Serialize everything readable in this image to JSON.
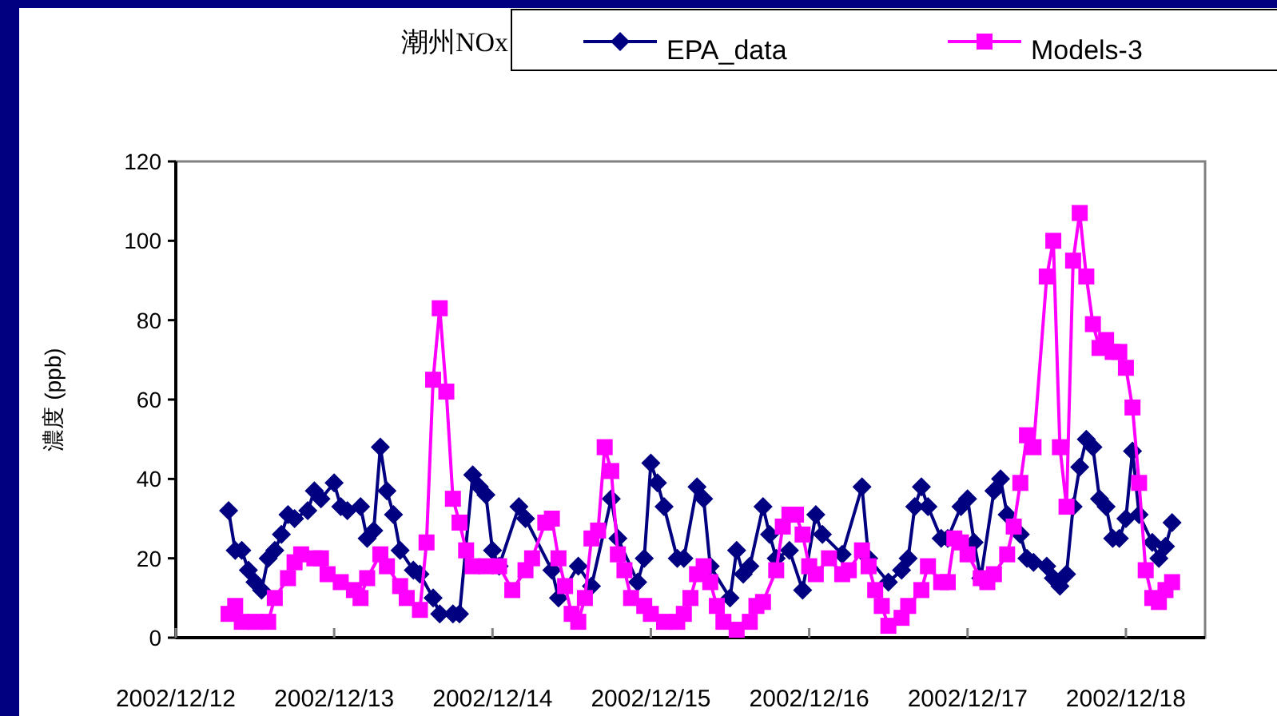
{
  "chart_data": {
    "type": "line",
    "title": "潮州NOx",
    "ylabel": "濃度 (ppb)",
    "legend": "top",
    "grid": false,
    "line_style": "solid",
    "xlim": [
      "2002-12-12T00:00",
      "2002-12-18T12:00"
    ],
    "xticks": [
      {
        "value": "2002-12-12",
        "label": "2002/12/12"
      },
      {
        "value": "2002-12-13",
        "label": "2002/12/13"
      },
      {
        "value": "2002-12-14",
        "label": "2002/12/14"
      },
      {
        "value": "2002-12-15",
        "label": "2002/12/15"
      },
      {
        "value": "2002-12-16",
        "label": "2002/12/16"
      },
      {
        "value": "2002-12-17",
        "label": "2002/12/17"
      },
      {
        "value": "2002-12-18",
        "label": "2002/12/18"
      }
    ],
    "ylim": [
      0,
      120
    ],
    "yticks": [
      0,
      20,
      40,
      60,
      80,
      100,
      120
    ],
    "series": [
      {
        "name": "EPA_data",
        "color": "#000080",
        "marker": "diamond",
        "x": [
          "2002-12-12T08:00",
          "2002-12-12T09:00",
          "2002-12-12T10:00",
          "2002-12-12T11:00",
          "2002-12-12T12:00",
          "2002-12-12T13:00",
          "2002-12-12T14:00",
          "2002-12-12T15:00",
          "2002-12-12T16:00",
          "2002-12-12T17:00",
          "2002-12-12T18:00",
          "2002-12-12T20:00",
          "2002-12-12T21:00",
          "2002-12-12T22:00",
          "2002-12-13T00:00",
          "2002-12-13T01:00",
          "2002-12-13T02:00",
          "2002-12-13T04:00",
          "2002-12-13T05:00",
          "2002-12-13T06:00",
          "2002-12-13T07:00",
          "2002-12-13T08:00",
          "2002-12-13T09:00",
          "2002-12-13T10:00",
          "2002-12-13T12:00",
          "2002-12-13T13:00",
          "2002-12-13T15:00",
          "2002-12-13T16:00",
          "2002-12-13T18:00",
          "2002-12-13T19:00",
          "2002-12-13T21:00",
          "2002-12-13T22:00",
          "2002-12-13T23:00",
          "2002-12-14T00:00",
          "2002-12-14T01:00",
          "2002-12-14T04:00",
          "2002-12-14T05:00",
          "2002-12-14T09:00",
          "2002-12-14T10:00",
          "2002-12-14T13:00",
          "2002-12-14T15:00",
          "2002-12-14T18:00",
          "2002-12-14T19:00",
          "2002-12-14T22:00",
          "2002-12-14T23:00",
          "2002-12-15T00:00",
          "2002-12-15T01:00",
          "2002-12-15T02:00",
          "2002-12-15T04:00",
          "2002-12-15T05:00",
          "2002-12-15T07:00",
          "2002-12-15T08:00",
          "2002-12-15T09:00",
          "2002-12-15T12:00",
          "2002-12-15T13:00",
          "2002-12-15T14:00",
          "2002-12-15T15:00",
          "2002-12-15T17:00",
          "2002-12-15T18:00",
          "2002-12-15T19:00",
          "2002-12-15T21:00",
          "2002-12-15T23:00",
          "2002-12-16T01:00",
          "2002-12-16T02:00",
          "2002-12-16T05:00",
          "2002-12-16T08:00",
          "2002-12-16T09:00",
          "2002-12-16T12:00",
          "2002-12-16T14:00",
          "2002-12-16T15:00",
          "2002-12-16T16:00",
          "2002-12-16T17:00",
          "2002-12-16T18:00",
          "2002-12-16T20:00",
          "2002-12-16T21:00",
          "2002-12-16T23:00",
          "2002-12-17T00:00",
          "2002-12-17T01:00",
          "2002-12-17T02:00",
          "2002-12-17T04:00",
          "2002-12-17T05:00",
          "2002-12-17T06:00",
          "2002-12-17T08:00",
          "2002-12-17T09:00",
          "2002-12-17T10:00",
          "2002-12-17T12:00",
          "2002-12-17T13:00",
          "2002-12-17T14:00",
          "2002-12-17T15:00",
          "2002-12-17T16:00",
          "2002-12-17T17:00",
          "2002-12-17T18:00",
          "2002-12-17T19:00",
          "2002-12-17T20:00",
          "2002-12-17T21:00",
          "2002-12-17T22:00",
          "2002-12-17T23:00",
          "2002-12-18T00:00",
          "2002-12-18T01:00",
          "2002-12-18T02:00",
          "2002-12-18T04:00",
          "2002-12-18T05:00",
          "2002-12-18T06:00",
          "2002-12-18T07:00"
        ],
        "values": [
          32,
          22,
          22,
          17,
          14,
          12,
          20,
          22,
          26,
          31,
          30,
          32,
          37,
          35,
          39,
          33,
          32,
          33,
          25,
          27,
          48,
          37,
          31,
          22,
          17,
          16,
          10,
          6,
          6,
          6,
          41,
          38,
          36,
          22,
          18,
          33,
          30,
          17,
          10,
          18,
          13,
          35,
          25,
          14,
          20,
          44,
          39,
          33,
          20,
          20,
          38,
          35,
          18,
          10,
          22,
          16,
          18,
          33,
          26,
          20,
          22,
          12,
          31,
          26,
          21,
          38,
          20,
          14,
          17,
          20,
          33,
          38,
          33,
          25,
          25,
          33,
          35,
          24,
          15,
          37,
          40,
          31,
          26,
          20,
          19,
          18,
          15,
          13,
          16,
          33,
          43,
          50,
          48,
          35,
          33,
          25,
          25,
          30,
          47,
          31,
          24,
          20,
          23,
          29
        ]
      },
      {
        "name": "Models-3",
        "color": "#ff00ff",
        "marker": "square",
        "x": [
          "2002-12-12T08:00",
          "2002-12-12T09:00",
          "2002-12-12T10:00",
          "2002-12-12T12:00",
          "2002-12-12T14:00",
          "2002-12-12T15:00",
          "2002-12-12T17:00",
          "2002-12-12T18:00",
          "2002-12-12T19:00",
          "2002-12-12T21:00",
          "2002-12-12T22:00",
          "2002-12-12T23:00",
          "2002-12-13T01:00",
          "2002-12-13T03:00",
          "2002-12-13T04:00",
          "2002-12-13T05:00",
          "2002-12-13T07:00",
          "2002-12-13T08:00",
          "2002-12-13T10:00",
          "2002-12-13T11:00",
          "2002-12-13T13:00",
          "2002-12-13T14:00",
          "2002-12-13T15:00",
          "2002-12-13T16:00",
          "2002-12-13T17:00",
          "2002-12-13T18:00",
          "2002-12-13T19:00",
          "2002-12-13T20:00",
          "2002-12-13T21:00",
          "2002-12-13T23:00",
          "2002-12-14T01:00",
          "2002-12-14T03:00",
          "2002-12-14T05:00",
          "2002-12-14T06:00",
          "2002-12-14T08:00",
          "2002-12-14T09:00",
          "2002-12-14T10:00",
          "2002-12-14T11:00",
          "2002-12-14T12:00",
          "2002-12-14T13:00",
          "2002-12-14T14:00",
          "2002-12-14T15:00",
          "2002-12-14T16:00",
          "2002-12-14T17:00",
          "2002-12-14T18:00",
          "2002-12-14T19:00",
          "2002-12-14T20:00",
          "2002-12-14T21:00",
          "2002-12-14T23:00",
          "2002-12-15T00:00",
          "2002-12-15T02:00",
          "2002-12-15T04:00",
          "2002-12-15T05:00",
          "2002-12-15T06:00",
          "2002-12-15T07:00",
          "2002-12-15T08:00",
          "2002-12-15T09:00",
          "2002-12-15T10:00",
          "2002-12-15T11:00",
          "2002-12-15T13:00",
          "2002-12-15T15:00",
          "2002-12-15T16:00",
          "2002-12-15T17:00",
          "2002-12-15T19:00",
          "2002-12-15T20:00",
          "2002-12-15T21:00",
          "2002-12-15T22:00",
          "2002-12-15T23:00",
          "2002-12-16T00:00",
          "2002-12-16T01:00",
          "2002-12-16T03:00",
          "2002-12-16T05:00",
          "2002-12-16T06:00",
          "2002-12-16T08:00",
          "2002-12-16T09:00",
          "2002-12-16T10:00",
          "2002-12-16T11:00",
          "2002-12-16T12:00",
          "2002-12-16T14:00",
          "2002-12-16T15:00",
          "2002-12-16T17:00",
          "2002-12-16T18:00",
          "2002-12-16T20:00",
          "2002-12-16T21:00",
          "2002-12-16T22:00",
          "2002-12-16T23:00",
          "2002-12-17T00:00",
          "2002-12-17T02:00",
          "2002-12-17T03:00",
          "2002-12-17T04:00",
          "2002-12-17T06:00",
          "2002-12-17T07:00",
          "2002-12-17T08:00",
          "2002-12-17T09:00",
          "2002-12-17T10:00",
          "2002-12-17T12:00",
          "2002-12-17T13:00",
          "2002-12-17T14:00",
          "2002-12-17T15:00",
          "2002-12-17T16:00",
          "2002-12-17T17:00",
          "2002-12-17T18:00",
          "2002-12-17T19:00",
          "2002-12-17T20:00",
          "2002-12-17T21:00",
          "2002-12-17T22:00",
          "2002-12-17T23:00",
          "2002-12-18T00:00",
          "2002-12-18T01:00",
          "2002-12-18T02:00",
          "2002-12-18T03:00",
          "2002-12-18T04:00",
          "2002-12-18T05:00",
          "2002-12-18T06:00",
          "2002-12-18T07:00"
        ],
        "values": [
          6,
          8,
          4,
          4,
          4,
          10,
          15,
          19,
          21,
          20,
          20,
          16,
          14,
          12,
          10,
          15,
          21,
          18,
          13,
          10,
          7,
          24,
          65,
          83,
          62,
          35,
          29,
          22,
          18,
          18,
          18,
          12,
          17,
          20,
          29,
          30,
          20,
          13,
          6,
          4,
          10,
          25,
          27,
          48,
          42,
          21,
          17,
          10,
          8,
          6,
          4,
          4,
          6,
          10,
          16,
          18,
          14,
          8,
          4,
          2,
          4,
          8,
          9,
          17,
          28,
          31,
          31,
          26,
          18,
          16,
          20,
          16,
          17,
          22,
          18,
          12,
          8,
          3,
          5,
          8,
          12,
          18,
          14,
          14,
          25,
          24,
          21,
          15,
          14,
          16,
          21,
          28,
          39,
          51,
          48,
          91,
          100,
          48,
          33,
          95,
          107,
          91,
          79,
          73,
          75,
          72,
          72,
          68,
          58,
          39,
          17,
          10,
          9,
          12,
          14
        ]
      }
    ]
  }
}
